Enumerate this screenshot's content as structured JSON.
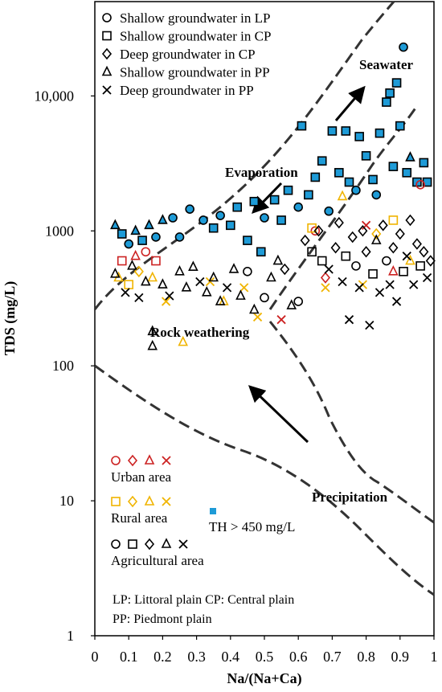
{
  "chart_data": {
    "type": "scatter",
    "xlabel": "Na/(Na+Ca)",
    "ylabel": "TDS (mg/L)",
    "xlim": [
      0,
      1
    ],
    "ylim": [
      1,
      50000
    ],
    "yscale": "log",
    "x_ticks": [
      "0",
      "0.1",
      "0.2",
      "0.3",
      "0.4",
      "0.5",
      "0.6",
      "0.7",
      "0.8",
      "0.9",
      "1"
    ],
    "y_ticks": [
      {
        "value": 1,
        "label": "1"
      },
      {
        "value": 10,
        "label": "10"
      },
      {
        "value": 100,
        "label": "100"
      },
      {
        "value": 1000,
        "label": "1000"
      },
      {
        "value": 10000,
        "label": "10,000"
      }
    ],
    "legend_markers": [
      {
        "marker": "circle",
        "label": "Shallow groundwater in LP"
      },
      {
        "marker": "square",
        "label": "Shallow groundwater in CP"
      },
      {
        "marker": "diamond",
        "label": "Deep groundwater in CP"
      },
      {
        "marker": "triangle",
        "label": "Shallow groundwater in PP"
      },
      {
        "marker": "cross",
        "label": "Deep groundwater in PP"
      }
    ],
    "legend_areas": [
      {
        "label": "Urban area",
        "color": "#cc2222"
      },
      {
        "label": "Rural area",
        "color": "#f0b400"
      },
      {
        "label": "Agricultural area",
        "color": "#000000"
      }
    ],
    "th_legend": {
      "label": "TH > 450 mg/L",
      "color": "#1e9bd7"
    },
    "notes": [
      "LP: Littoral plain   CP: Central plain",
      "PP: Piedmont plain"
    ],
    "region_labels": {
      "seawater": "Seawater",
      "evaporation": "Evaporation",
      "rock": "Rock weathering",
      "precipitation": "Precipitation"
    },
    "points": [
      {
        "x": 0.06,
        "y": 1100,
        "m": "triangle",
        "c": "#1e9bd7"
      },
      {
        "x": 0.08,
        "y": 950,
        "m": "square",
        "c": "#1e9bd7"
      },
      {
        "x": 0.1,
        "y": 800,
        "m": "circle",
        "c": "#1e9bd7"
      },
      {
        "x": 0.12,
        "y": 1000,
        "m": "triangle",
        "c": "#1e9bd7"
      },
      {
        "x": 0.14,
        "y": 850,
        "m": "square",
        "c": "#1e9bd7"
      },
      {
        "x": 0.16,
        "y": 1100,
        "m": "triangle",
        "c": "#1e9bd7"
      },
      {
        "x": 0.18,
        "y": 900,
        "m": "circle",
        "c": "#1e9bd7"
      },
      {
        "x": 0.2,
        "y": 1200,
        "m": "triangle",
        "c": "#1e9bd7"
      },
      {
        "x": 0.23,
        "y": 1250,
        "m": "circle",
        "c": "#1e9bd7"
      },
      {
        "x": 0.25,
        "y": 900,
        "m": "circle",
        "c": "#1e9bd7"
      },
      {
        "x": 0.28,
        "y": 1450,
        "m": "circle",
        "c": "#1e9bd7"
      },
      {
        "x": 0.32,
        "y": 1200,
        "m": "circle",
        "c": "#1e9bd7"
      },
      {
        "x": 0.35,
        "y": 1050,
        "m": "square",
        "c": "#1e9bd7"
      },
      {
        "x": 0.37,
        "y": 1300,
        "m": "circle",
        "c": "#1e9bd7"
      },
      {
        "x": 0.4,
        "y": 1100,
        "m": "square",
        "c": "#1e9bd7"
      },
      {
        "x": 0.42,
        "y": 1500,
        "m": "square",
        "c": "#1e9bd7"
      },
      {
        "x": 0.45,
        "y": 850,
        "m": "square",
        "c": "#1e9bd7"
      },
      {
        "x": 0.47,
        "y": 1650,
        "m": "square",
        "c": "#1e9bd7"
      },
      {
        "x": 0.49,
        "y": 700,
        "m": "square",
        "c": "#1e9bd7"
      },
      {
        "x": 0.5,
        "y": 1250,
        "m": "circle",
        "c": "#1e9bd7"
      },
      {
        "x": 0.53,
        "y": 1700,
        "m": "square",
        "c": "#1e9bd7"
      },
      {
        "x": 0.55,
        "y": 1200,
        "m": "square",
        "c": "#1e9bd7"
      },
      {
        "x": 0.57,
        "y": 2000,
        "m": "square",
        "c": "#1e9bd7"
      },
      {
        "x": 0.6,
        "y": 1500,
        "m": "circle",
        "c": "#1e9bd7"
      },
      {
        "x": 0.61,
        "y": 6000,
        "m": "square",
        "c": "#1e9bd7"
      },
      {
        "x": 0.63,
        "y": 1850,
        "m": "square",
        "c": "#1e9bd7"
      },
      {
        "x": 0.65,
        "y": 2500,
        "m": "square",
        "c": "#1e9bd7"
      },
      {
        "x": 0.67,
        "y": 3300,
        "m": "square",
        "c": "#1e9bd7"
      },
      {
        "x": 0.69,
        "y": 1400,
        "m": "circle",
        "c": "#1e9bd7"
      },
      {
        "x": 0.7,
        "y": 5500,
        "m": "square",
        "c": "#1e9bd7"
      },
      {
        "x": 0.72,
        "y": 2700,
        "m": "square",
        "c": "#1e9bd7"
      },
      {
        "x": 0.74,
        "y": 5500,
        "m": "square",
        "c": "#1e9bd7"
      },
      {
        "x": 0.75,
        "y": 2300,
        "m": "square",
        "c": "#1e9bd7"
      },
      {
        "x": 0.77,
        "y": 2000,
        "m": "circle",
        "c": "#1e9bd7"
      },
      {
        "x": 0.78,
        "y": 5000,
        "m": "square",
        "c": "#1e9bd7"
      },
      {
        "x": 0.8,
        "y": 3600,
        "m": "square",
        "c": "#1e9bd7"
      },
      {
        "x": 0.82,
        "y": 2400,
        "m": "square",
        "c": "#1e9bd7"
      },
      {
        "x": 0.84,
        "y": 5300,
        "m": "square",
        "c": "#1e9bd7"
      },
      {
        "x": 0.86,
        "y": 9000,
        "m": "square",
        "c": "#1e9bd7"
      },
      {
        "x": 0.87,
        "y": 10500,
        "m": "square",
        "c": "#1e9bd7"
      },
      {
        "x": 0.88,
        "y": 3000,
        "m": "square",
        "c": "#1e9bd7"
      },
      {
        "x": 0.89,
        "y": 12500,
        "m": "square",
        "c": "#1e9bd7"
      },
      {
        "x": 0.91,
        "y": 23000,
        "m": "circle",
        "c": "#1e9bd7"
      },
      {
        "x": 0.92,
        "y": 2700,
        "m": "square",
        "c": "#1e9bd7"
      },
      {
        "x": 0.93,
        "y": 3500,
        "m": "triangle",
        "c": "#1e9bd7"
      },
      {
        "x": 0.95,
        "y": 2300,
        "m": "square",
        "c": "#1e9bd7"
      },
      {
        "x": 0.97,
        "y": 3200,
        "m": "square",
        "c": "#1e9bd7"
      },
      {
        "x": 0.98,
        "y": 2300,
        "m": "square",
        "c": "#1e9bd7"
      },
      {
        "x": 0.9,
        "y": 6000,
        "m": "square",
        "c": "#1e9bd7"
      },
      {
        "x": 0.83,
        "y": 1850,
        "m": "circle",
        "c": "#1e9bd7"
      },
      {
        "x": 0.08,
        "y": 600,
        "m": "square",
        "c": "#cc2222"
      },
      {
        "x": 0.12,
        "y": 650,
        "m": "triangle",
        "c": "#cc2222"
      },
      {
        "x": 0.15,
        "y": 700,
        "m": "circle",
        "c": "#cc2222"
      },
      {
        "x": 0.18,
        "y": 600,
        "m": "square",
        "c": "#cc2222"
      },
      {
        "x": 0.55,
        "y": 220,
        "m": "cross",
        "c": "#cc2222"
      },
      {
        "x": 0.65,
        "y": 1000,
        "m": "circle",
        "c": "#cc2222"
      },
      {
        "x": 0.68,
        "y": 450,
        "m": "diamond",
        "c": "#cc2222"
      },
      {
        "x": 0.8,
        "y": 1100,
        "m": "cross",
        "c": "#cc2222"
      },
      {
        "x": 0.88,
        "y": 500,
        "m": "triangle",
        "c": "#cc2222"
      },
      {
        "x": 0.96,
        "y": 2200,
        "m": "circle",
        "c": "#cc2222"
      },
      {
        "x": 0.07,
        "y": 450,
        "m": "triangle",
        "c": "#f0b400"
      },
      {
        "x": 0.1,
        "y": 400,
        "m": "square",
        "c": "#f0b400"
      },
      {
        "x": 0.13,
        "y": 500,
        "m": "diamond",
        "c": "#f0b400"
      },
      {
        "x": 0.17,
        "y": 450,
        "m": "triangle",
        "c": "#f0b400"
      },
      {
        "x": 0.21,
        "y": 300,
        "m": "cross",
        "c": "#f0b400"
      },
      {
        "x": 0.26,
        "y": 150,
        "m": "triangle",
        "c": "#f0b400"
      },
      {
        "x": 0.34,
        "y": 420,
        "m": "cross",
        "c": "#f0b400"
      },
      {
        "x": 0.38,
        "y": 300,
        "m": "triangle",
        "c": "#f0b400"
      },
      {
        "x": 0.44,
        "y": 380,
        "m": "cross",
        "c": "#f0b400"
      },
      {
        "x": 0.48,
        "y": 230,
        "m": "cross",
        "c": "#f0b400"
      },
      {
        "x": 0.64,
        "y": 1050,
        "m": "square",
        "c": "#f0b400"
      },
      {
        "x": 0.68,
        "y": 380,
        "m": "cross",
        "c": "#f0b400"
      },
      {
        "x": 0.73,
        "y": 1800,
        "m": "triangle",
        "c": "#f0b400"
      },
      {
        "x": 0.79,
        "y": 400,
        "m": "cross",
        "c": "#f0b400"
      },
      {
        "x": 0.83,
        "y": 950,
        "m": "diamond",
        "c": "#f0b400"
      },
      {
        "x": 0.88,
        "y": 1200,
        "m": "square",
        "c": "#f0b400"
      },
      {
        "x": 0.93,
        "y": 600,
        "m": "triangle",
        "c": "#f0b400"
      },
      {
        "x": 0.06,
        "y": 480,
        "m": "triangle",
        "c": "#000000"
      },
      {
        "x": 0.09,
        "y": 350,
        "m": "cross",
        "c": "#000000"
      },
      {
        "x": 0.11,
        "y": 550,
        "m": "triangle",
        "c": "#000000"
      },
      {
        "x": 0.13,
        "y": 320,
        "m": "cross",
        "c": "#000000"
      },
      {
        "x": 0.15,
        "y": 420,
        "m": "triangle",
        "c": "#000000"
      },
      {
        "x": 0.17,
        "y": 180,
        "m": "triangle",
        "c": "#000000"
      },
      {
        "x": 0.17,
        "y": 140,
        "m": "triangle",
        "c": "#000000"
      },
      {
        "x": 0.2,
        "y": 400,
        "m": "triangle",
        "c": "#000000"
      },
      {
        "x": 0.22,
        "y": 330,
        "m": "cross",
        "c": "#000000"
      },
      {
        "x": 0.25,
        "y": 500,
        "m": "triangle",
        "c": "#000000"
      },
      {
        "x": 0.27,
        "y": 380,
        "m": "triangle",
        "c": "#000000"
      },
      {
        "x": 0.29,
        "y": 540,
        "m": "triangle",
        "c": "#000000"
      },
      {
        "x": 0.31,
        "y": 420,
        "m": "cross",
        "c": "#000000"
      },
      {
        "x": 0.33,
        "y": 350,
        "m": "triangle",
        "c": "#000000"
      },
      {
        "x": 0.35,
        "y": 450,
        "m": "triangle",
        "c": "#000000"
      },
      {
        "x": 0.37,
        "y": 300,
        "m": "triangle",
        "c": "#000000"
      },
      {
        "x": 0.39,
        "y": 380,
        "m": "cross",
        "c": "#000000"
      },
      {
        "x": 0.41,
        "y": 520,
        "m": "triangle",
        "c": "#000000"
      },
      {
        "x": 0.43,
        "y": 330,
        "m": "triangle",
        "c": "#000000"
      },
      {
        "x": 0.45,
        "y": 500,
        "m": "circle",
        "c": "#000000"
      },
      {
        "x": 0.47,
        "y": 260,
        "m": "triangle",
        "c": "#000000"
      },
      {
        "x": 0.5,
        "y": 320,
        "m": "circle",
        "c": "#000000"
      },
      {
        "x": 0.52,
        "y": 450,
        "m": "triangle",
        "c": "#000000"
      },
      {
        "x": 0.54,
        "y": 600,
        "m": "triangle",
        "c": "#000000"
      },
      {
        "x": 0.56,
        "y": 520,
        "m": "diamond",
        "c": "#000000"
      },
      {
        "x": 0.58,
        "y": 280,
        "m": "triangle",
        "c": "#000000"
      },
      {
        "x": 0.6,
        "y": 300,
        "m": "circle",
        "c": "#000000"
      },
      {
        "x": 0.62,
        "y": 850,
        "m": "diamond",
        "c": "#000000"
      },
      {
        "x": 0.64,
        "y": 700,
        "m": "square",
        "c": "#000000"
      },
      {
        "x": 0.66,
        "y": 1000,
        "m": "diamond",
        "c": "#000000"
      },
      {
        "x": 0.67,
        "y": 600,
        "m": "square",
        "c": "#000000"
      },
      {
        "x": 0.69,
        "y": 520,
        "m": "cross",
        "c": "#000000"
      },
      {
        "x": 0.71,
        "y": 750,
        "m": "diamond",
        "c": "#000000"
      },
      {
        "x": 0.72,
        "y": 1150,
        "m": "diamond",
        "c": "#000000"
      },
      {
        "x": 0.73,
        "y": 420,
        "m": "cross",
        "c": "#000000"
      },
      {
        "x": 0.74,
        "y": 650,
        "m": "square",
        "c": "#000000"
      },
      {
        "x": 0.75,
        "y": 220,
        "m": "cross",
        "c": "#000000"
      },
      {
        "x": 0.76,
        "y": 900,
        "m": "diamond",
        "c": "#000000"
      },
      {
        "x": 0.77,
        "y": 550,
        "m": "circle",
        "c": "#000000"
      },
      {
        "x": 0.78,
        "y": 380,
        "m": "cross",
        "c": "#000000"
      },
      {
        "x": 0.79,
        "y": 1000,
        "m": "diamond",
        "c": "#000000"
      },
      {
        "x": 0.8,
        "y": 700,
        "m": "diamond",
        "c": "#000000"
      },
      {
        "x": 0.81,
        "y": 200,
        "m": "cross",
        "c": "#000000"
      },
      {
        "x": 0.82,
        "y": 480,
        "m": "square",
        "c": "#000000"
      },
      {
        "x": 0.83,
        "y": 850,
        "m": "triangle",
        "c": "#000000"
      },
      {
        "x": 0.84,
        "y": 350,
        "m": "cross",
        "c": "#000000"
      },
      {
        "x": 0.85,
        "y": 1100,
        "m": "diamond",
        "c": "#000000"
      },
      {
        "x": 0.86,
        "y": 600,
        "m": "circle",
        "c": "#000000"
      },
      {
        "x": 0.87,
        "y": 400,
        "m": "cross",
        "c": "#000000"
      },
      {
        "x": 0.88,
        "y": 750,
        "m": "diamond",
        "c": "#000000"
      },
      {
        "x": 0.89,
        "y": 300,
        "m": "cross",
        "c": "#000000"
      },
      {
        "x": 0.9,
        "y": 950,
        "m": "diamond",
        "c": "#000000"
      },
      {
        "x": 0.91,
        "y": 500,
        "m": "square",
        "c": "#000000"
      },
      {
        "x": 0.92,
        "y": 650,
        "m": "cross",
        "c": "#000000"
      },
      {
        "x": 0.93,
        "y": 1200,
        "m": "diamond",
        "c": "#000000"
      },
      {
        "x": 0.94,
        "y": 400,
        "m": "cross",
        "c": "#000000"
      },
      {
        "x": 0.95,
        "y": 800,
        "m": "diamond",
        "c": "#000000"
      },
      {
        "x": 0.96,
        "y": 550,
        "m": "square",
        "c": "#000000"
      },
      {
        "x": 0.97,
        "y": 700,
        "m": "diamond",
        "c": "#000000"
      },
      {
        "x": 0.98,
        "y": 450,
        "m": "cross",
        "c": "#000000"
      },
      {
        "x": 0.99,
        "y": 600,
        "m": "diamond",
        "c": "#000000"
      }
    ]
  }
}
